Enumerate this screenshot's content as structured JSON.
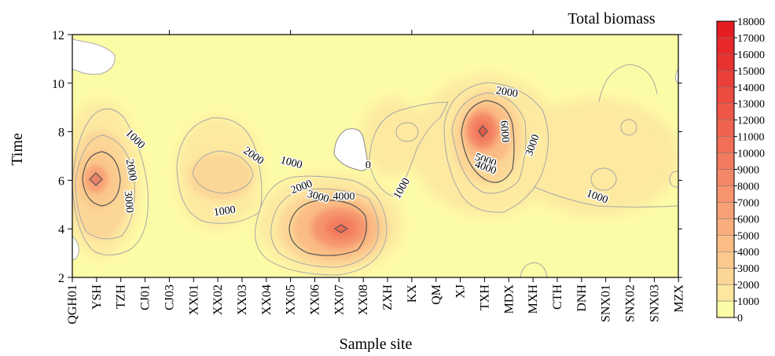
{
  "chart_data": {
    "type": "heatmap",
    "title": "Total biomass",
    "xlabel": "Sample site",
    "ylabel": "Time",
    "x_categories": [
      "QGH01",
      "YSH",
      "TZH",
      "CJ01",
      "CJ03",
      "XX01",
      "XX02",
      "XX03",
      "XX04",
      "XX05",
      "XX06",
      "XX07",
      "XX08",
      "ZXH",
      "KX",
      "QM",
      "XJ",
      "TXH",
      "MDX",
      "MXH",
      "CTH",
      "DNH",
      "SNX01",
      "SNX02",
      "SNX03",
      "MZX"
    ],
    "y_ticks": [
      2,
      4,
      6,
      8,
      10,
      12
    ],
    "ylim": [
      2,
      12
    ],
    "colorbar": {
      "levels": [
        0,
        1000,
        2000,
        3000,
        4000,
        5000,
        6000,
        7000,
        8000,
        9000,
        10000,
        11000,
        12000,
        13000,
        14000,
        15000,
        16000,
        17000,
        18000
      ],
      "colors": [
        "#fdfca6",
        "#fde69e",
        "#fcd696",
        "#fbc98d",
        "#fbbc85",
        "#f9ad7d",
        "#f8a075",
        "#f6946d",
        "#f48766",
        "#f37b5e",
        "#f16f56",
        "#f0634f",
        "#ee5747",
        "#ec4b40",
        "#eb3f39",
        "#e93331",
        "#e8282a",
        "#e61c23"
      ]
    },
    "peaks": [
      {
        "site": "YSH",
        "time": 6,
        "value": 5000
      },
      {
        "site": "XX07",
        "time": 4,
        "value": 7000
      },
      {
        "site": "TXH",
        "time": 8,
        "value": 9000
      }
    ],
    "contour_labels": [
      {
        "text": "1000",
        "site_index": 2.5,
        "time": 7.6,
        "angle": 45
      },
      {
        "text": "2000",
        "site_index": 2.3,
        "time": 6.4,
        "angle": 80
      },
      {
        "text": "3000",
        "site_index": 2.2,
        "time": 5.1,
        "angle": 85
      },
      {
        "text": "2000",
        "site_index": 7.4,
        "time": 6.9,
        "angle": 35
      },
      {
        "text": "1000",
        "site_index": 9.0,
        "time": 6.6,
        "angle": 15
      },
      {
        "text": "1000",
        "site_index": 6.3,
        "time": 4.6,
        "angle": -8
      },
      {
        "text": "2000",
        "site_index": 9.5,
        "time": 5.6,
        "angle": -20
      },
      {
        "text": "3000",
        "site_index": 10.1,
        "time": 5.2,
        "angle": 15
      },
      {
        "text": "4000",
        "site_index": 11.2,
        "time": 5.2,
        "angle": 0
      },
      {
        "text": "0",
        "site_index": 12.2,
        "time": 6.5,
        "angle": 0
      },
      {
        "text": "1000",
        "site_index": 13.7,
        "time": 5.6,
        "angle": -60
      },
      {
        "text": "2000",
        "site_index": 17.9,
        "time": 9.5,
        "angle": 10
      },
      {
        "text": "6000",
        "site_index": 17.7,
        "time": 8.0,
        "angle": 85
      },
      {
        "text": "5000",
        "site_index": 17.0,
        "time": 6.7,
        "angle": 20
      },
      {
        "text": "4000",
        "site_index": 17.0,
        "time": 6.4,
        "angle": 20
      },
      {
        "text": "3000",
        "site_index": 19.1,
        "time": 7.4,
        "angle": -70
      },
      {
        "text": "1000",
        "site_index": 21.6,
        "time": 5.2,
        "angle": 20
      }
    ]
  }
}
